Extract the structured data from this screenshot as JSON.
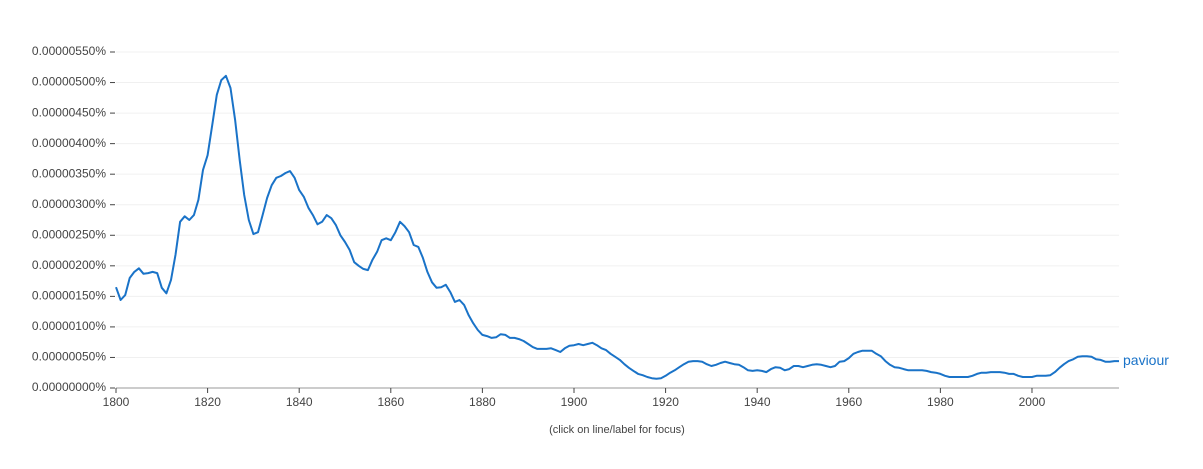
{
  "chart_data": {
    "type": "line",
    "note": "(click on line/label for focus)",
    "x": [
      1800,
      1801,
      1802,
      1803,
      1804,
      1805,
      1806,
      1807,
      1808,
      1809,
      1810,
      1811,
      1812,
      1813,
      1814,
      1815,
      1816,
      1817,
      1818,
      1819,
      1820,
      1821,
      1822,
      1823,
      1824,
      1825,
      1826,
      1827,
      1828,
      1829,
      1830,
      1831,
      1832,
      1833,
      1834,
      1835,
      1836,
      1837,
      1838,
      1839,
      1840,
      1841,
      1842,
      1843,
      1844,
      1845,
      1846,
      1847,
      1848,
      1849,
      1850,
      1851,
      1852,
      1853,
      1854,
      1855,
      1856,
      1857,
      1858,
      1859,
      1860,
      1861,
      1862,
      1863,
      1864,
      1865,
      1866,
      1867,
      1868,
      1869,
      1870,
      1871,
      1872,
      1873,
      1874,
      1875,
      1876,
      1877,
      1878,
      1879,
      1880,
      1881,
      1882,
      1883,
      1884,
      1885,
      1886,
      1887,
      1888,
      1889,
      1890,
      1891,
      1892,
      1893,
      1894,
      1895,
      1896,
      1897,
      1898,
      1899,
      1900,
      1901,
      1902,
      1903,
      1904,
      1905,
      1906,
      1907,
      1908,
      1909,
      1910,
      1911,
      1912,
      1913,
      1914,
      1915,
      1916,
      1917,
      1918,
      1919,
      1920,
      1921,
      1922,
      1923,
      1924,
      1925,
      1926,
      1927,
      1928,
      1929,
      1930,
      1931,
      1932,
      1933,
      1934,
      1935,
      1936,
      1937,
      1938,
      1939,
      1940,
      1941,
      1942,
      1943,
      1944,
      1945,
      1946,
      1947,
      1948,
      1949,
      1950,
      1951,
      1952,
      1953,
      1954,
      1955,
      1956,
      1957,
      1958,
      1959,
      1960,
      1961,
      1962,
      1963,
      1964,
      1965,
      1966,
      1967,
      1968,
      1969,
      1970,
      1971,
      1972,
      1973,
      1974,
      1975,
      1976,
      1977,
      1978,
      1979,
      1980,
      1981,
      1982,
      1983,
      1984,
      1985,
      1986,
      1987,
      1988,
      1989,
      1990,
      1991,
      1992,
      1993,
      1994,
      1995,
      1996,
      1997,
      1998,
      1999,
      2000,
      2001,
      2002,
      2003,
      2004,
      2005,
      2006,
      2007,
      2008,
      2009,
      2010,
      2011,
      2012,
      2013,
      2014,
      2015,
      2016,
      2017,
      2018,
      2019
    ],
    "series": [
      {
        "name": "paviour",
        "color": "#1a73c8",
        "values": [
          1.65e-06,
          1.44e-06,
          1.52e-06,
          1.8e-06,
          1.9e-06,
          1.96e-06,
          1.87e-06,
          1.88e-06,
          1.9e-06,
          1.88e-06,
          1.64e-06,
          1.55e-06,
          1.77e-06,
          2.18e-06,
          2.72e-06,
          2.81e-06,
          2.75e-06,
          2.83e-06,
          3.08e-06,
          3.57e-06,
          3.81e-06,
          4.3e-06,
          4.8e-06,
          5.04e-06,
          5.11e-06,
          4.91e-06,
          4.39e-06,
          3.73e-06,
          3.16e-06,
          2.75e-06,
          2.52e-06,
          2.55e-06,
          2.83e-06,
          3.11e-06,
          3.32e-06,
          3.44e-06,
          3.47e-06,
          3.52e-06,
          3.55e-06,
          3.44e-06,
          3.24e-06,
          3.13e-06,
          2.95e-06,
          2.83e-06,
          2.68e-06,
          2.72e-06,
          2.83e-06,
          2.78e-06,
          2.67e-06,
          2.5e-06,
          2.39e-06,
          2.26e-06,
          2.06e-06,
          2e-06,
          1.95e-06,
          1.93e-06,
          2.1e-06,
          2.23e-06,
          2.42e-06,
          2.45e-06,
          2.42e-06,
          2.55e-06,
          2.72e-06,
          2.65e-06,
          2.55e-06,
          2.34e-06,
          2.31e-06,
          2.13e-06,
          1.9e-06,
          1.73e-06,
          1.64e-06,
          1.65e-06,
          1.69e-06,
          1.57e-06,
          1.41e-06,
          1.44e-06,
          1.36e-06,
          1.19e-06,
          1.06e-06,
          9.5e-07,
          8.7e-07,
          8.5e-07,
          8.2e-07,
          8.3e-07,
          8.8e-07,
          8.7e-07,
          8.2e-07,
          8.2e-07,
          8e-07,
          7.7e-07,
          7.2e-07,
          6.7e-07,
          6.4e-07,
          6.4e-07,
          6.4e-07,
          6.5e-07,
          6.2e-07,
          5.9e-07,
          6.5e-07,
          6.9e-07,
          7e-07,
          7.2e-07,
          7e-07,
          7.2e-07,
          7.4e-07,
          7e-07,
          6.5e-07,
          6.2e-07,
          5.6e-07,
          5.1e-07,
          4.6e-07,
          3.9e-07,
          3.3e-07,
          2.8e-07,
          2.3e-07,
          2.1e-07,
          1.8e-07,
          1.6e-07,
          1.5e-07,
          1.6e-07,
          2e-07,
          2.5e-07,
          2.9e-07,
          3.4e-07,
          3.9e-07,
          4.3e-07,
          4.4e-07,
          4.4e-07,
          4.3e-07,
          3.9e-07,
          3.6e-07,
          3.8e-07,
          4.1e-07,
          4.3e-07,
          4.1e-07,
          3.9e-07,
          3.8e-07,
          3.4e-07,
          2.9e-07,
          2.8e-07,
          2.9e-07,
          2.8e-07,
          2.6e-07,
          3.1e-07,
          3.4e-07,
          3.3e-07,
          2.9e-07,
          3.1e-07,
          3.6e-07,
          3.6e-07,
          3.4e-07,
          3.6e-07,
          3.8e-07,
          3.9e-07,
          3.8e-07,
          3.6e-07,
          3.4e-07,
          3.6e-07,
          4.3e-07,
          4.4e-07,
          4.9e-07,
          5.6e-07,
          5.9e-07,
          6.1e-07,
          6.1e-07,
          6.1e-07,
          5.6e-07,
          5.2e-07,
          4.4e-07,
          3.8e-07,
          3.4e-07,
          3.3e-07,
          3.1e-07,
          2.9e-07,
          2.9e-07,
          2.9e-07,
          2.9e-07,
          2.8e-07,
          2.6e-07,
          2.5e-07,
          2.3e-07,
          2e-07,
          1.8e-07,
          1.8e-07,
          1.8e-07,
          1.8e-07,
          1.8e-07,
          2e-07,
          2.3e-07,
          2.5e-07,
          2.5e-07,
          2.6e-07,
          2.6e-07,
          2.6e-07,
          2.5e-07,
          2.3e-07,
          2.3e-07,
          2e-07,
          1.8e-07,
          1.8e-07,
          1.8e-07,
          2e-07,
          2e-07,
          2e-07,
          2.1e-07,
          2.6e-07,
          3.3e-07,
          3.9e-07,
          4.4e-07,
          4.7e-07,
          5.1e-07,
          5.2e-07,
          5.2e-07,
          5.1e-07,
          4.7e-07,
          4.6e-07,
          4.3e-07,
          4.3e-07,
          4.4e-07,
          4.4e-07
        ]
      }
    ],
    "xlim": [
      1800,
      2019
    ],
    "xticks": [
      1800,
      1820,
      1840,
      1860,
      1880,
      1900,
      1920,
      1940,
      1960,
      1980,
      2000
    ],
    "ylim": [
      0,
      5.5e-06
    ],
    "yticks": [
      {
        "value": 0,
        "label": "0.00000000%"
      },
      {
        "value": 5e-07,
        "label": "0.00000050%"
      },
      {
        "value": 1e-06,
        "label": "0.00000100%"
      },
      {
        "value": 1.5e-06,
        "label": "0.00000150%"
      },
      {
        "value": 2e-06,
        "label": "0.00000200%"
      },
      {
        "value": 2.5e-06,
        "label": "0.00000250%"
      },
      {
        "value": 3e-06,
        "label": "0.00000300%"
      },
      {
        "value": 3.5e-06,
        "label": "0.00000350%"
      },
      {
        "value": 4e-06,
        "label": "0.00000400%"
      },
      {
        "value": 4.5e-06,
        "label": "0.00000450%"
      },
      {
        "value": 5e-06,
        "label": "0.00000500%"
      },
      {
        "value": 5.5e-06,
        "label": "0.00000550%"
      }
    ],
    "grid": true
  }
}
